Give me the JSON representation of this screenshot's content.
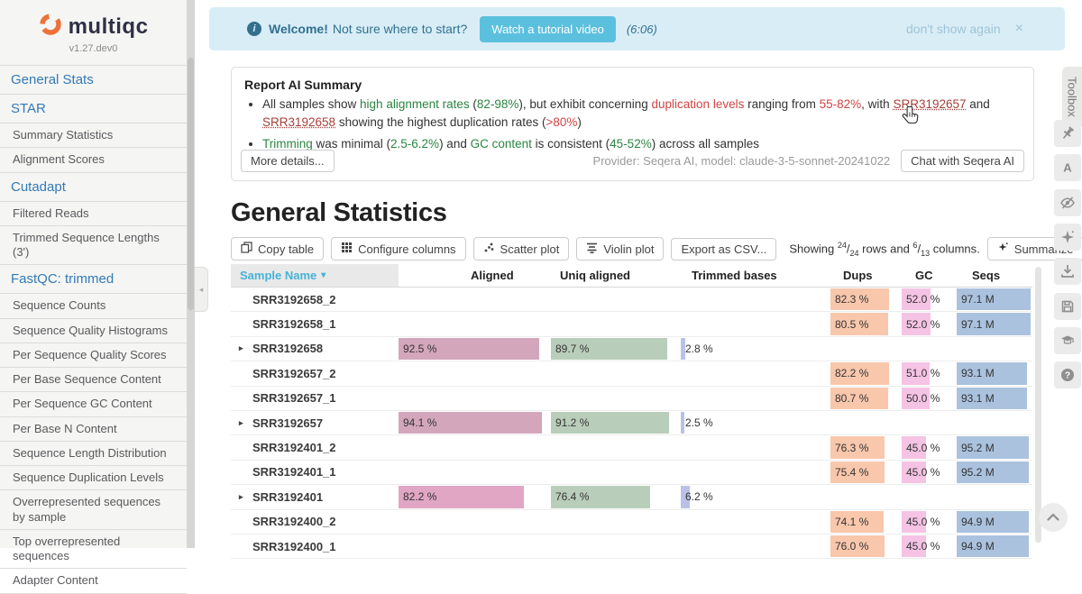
{
  "theme": {
    "sidebar_bg": "#f5f5f3",
    "nav_blue": "#337ab7",
    "banner_bg": "#d9edf7",
    "banner_text": "#31708f",
    "banner_btn": "#5bc0de",
    "good": "#2a8540",
    "bad": "#d04444",
    "link_red": "#a5403a",
    "sort_blue": "#46b2d8",
    "logo_orange": "#ee7139"
  },
  "brand": {
    "name": "multiqc",
    "version": "v1.27.dev0"
  },
  "sidebar": {
    "items": [
      {
        "label": "General Stats",
        "type": "section"
      },
      {
        "label": "STAR",
        "type": "section"
      },
      {
        "label": "Summary Statistics",
        "type": "sub"
      },
      {
        "label": "Alignment Scores",
        "type": "sub"
      },
      {
        "label": "Cutadapt",
        "type": "section"
      },
      {
        "label": "Filtered Reads",
        "type": "sub"
      },
      {
        "label": "Trimmed Sequence Lengths (3')",
        "type": "sub"
      },
      {
        "label": "FastQC: trimmed",
        "type": "section"
      },
      {
        "label": "Sequence Counts",
        "type": "sub"
      },
      {
        "label": "Sequence Quality Histograms",
        "type": "sub"
      },
      {
        "label": "Per Sequence Quality Scores",
        "type": "sub"
      },
      {
        "label": "Per Base Sequence Content",
        "type": "sub"
      },
      {
        "label": "Per Sequence GC Content",
        "type": "sub"
      },
      {
        "label": "Per Base N Content",
        "type": "sub"
      },
      {
        "label": "Sequence Length Distribution",
        "type": "sub"
      },
      {
        "label": "Sequence Duplication Levels",
        "type": "sub"
      },
      {
        "label": "Overrepresented sequences by sample",
        "type": "sub"
      },
      {
        "label": "Top overrepresented sequences",
        "type": "sub"
      },
      {
        "label": "Adapter Content",
        "type": "sub"
      }
    ]
  },
  "welcome": {
    "bold": "Welcome!",
    "text": "Not sure where to start?",
    "button": "Watch a tutorial video",
    "duration": "(6:06)",
    "dismiss": "don't show again",
    "close": "×"
  },
  "ai_summary": {
    "title": "Report AI Summary",
    "bullets": [
      [
        {
          "t": "All samples show "
        },
        {
          "t": "high alignment rates",
          "c": "good"
        },
        {
          "t": " ("
        },
        {
          "t": "82-98%",
          "c": "good"
        },
        {
          "t": "), but exhibit concerning "
        },
        {
          "t": "duplication levels",
          "c": "bad"
        },
        {
          "t": " ranging from "
        },
        {
          "t": "55-82%",
          "c": "bad"
        },
        {
          "t": ", with "
        },
        {
          "t": "SRR3192657",
          "c": "link"
        },
        {
          "t": " and "
        },
        {
          "t": "SRR3192658",
          "c": "link"
        },
        {
          "t": " showing the highest duplication rates ("
        },
        {
          "t": ">80%",
          "c": "bad"
        },
        {
          "t": ")"
        }
      ],
      [
        {
          "t": "Trimming",
          "c": "good"
        },
        {
          "t": " was minimal ("
        },
        {
          "t": "2.5-6.2%",
          "c": "good"
        },
        {
          "t": ") and "
        },
        {
          "t": "GC content",
          "c": "good"
        },
        {
          "t": " is consistent ("
        },
        {
          "t": "45-52%",
          "c": "good"
        },
        {
          "t": ") across all samples"
        }
      ]
    ],
    "more_details": "More details...",
    "provider": "Provider: Seqera AI, model: claude-3-5-sonnet-20241022",
    "chat": "Chat with Seqera AI"
  },
  "general_stats": {
    "title": "General Statistics",
    "toolbar": {
      "copy": "Copy table",
      "configure": "Configure columns",
      "scatter": "Scatter plot",
      "violin": "Violin plot",
      "export": "Export as CSV...",
      "summarize": "Summarize",
      "showing": {
        "prefix": "Showing ",
        "rows_num": "24",
        "rows_den": "24",
        "mid": " rows and ",
        "cols_num": "6",
        "cols_den": "13",
        "suffix": " columns."
      }
    },
    "table": {
      "columns": [
        "Sample Name",
        "Aligned",
        "Uniq aligned",
        "Trimmed bases",
        "Dups",
        "GC",
        "Seqs"
      ],
      "colors": {
        "aligned": "#d4a6bc",
        "uniq": "#b9ceba",
        "trimmed": "#bac1e8",
        "dups": "#f8c7ac",
        "gc": "#f5c3e4",
        "seqs": "#aac2de"
      },
      "rows": [
        {
          "name": "SRR3192658_2",
          "parent": false,
          "cells": {
            "dups": {
              "text": "82.3 %",
              "pct": 82.3
            },
            "gc": {
              "text": "52.0 %",
              "pct": 52
            },
            "seqs": {
              "text": "97.1 M",
              "pct": 97.1
            }
          }
        },
        {
          "name": "SRR3192658_1",
          "parent": false,
          "cells": {
            "dups": {
              "text": "80.5 %",
              "pct": 80.5
            },
            "gc": {
              "text": "52.0 %",
              "pct": 52
            },
            "seqs": {
              "text": "97.1 M",
              "pct": 97.1
            }
          }
        },
        {
          "name": "SRR3192658",
          "parent": true,
          "cells": {
            "aligned": {
              "text": "92.5 %",
              "pct": 92.5
            },
            "uniq": {
              "text": "89.7 %",
              "pct": 89.7
            },
            "trimmed": {
              "text": "2.8 %",
              "pct": 2.8
            }
          }
        },
        {
          "name": "SRR3192657_2",
          "parent": false,
          "cells": {
            "dups": {
              "text": "82.2 %",
              "pct": 82.2
            },
            "gc": {
              "text": "51.0 %",
              "pct": 51
            },
            "seqs": {
              "text": "93.1 M",
              "pct": 93.1
            }
          }
        },
        {
          "name": "SRR3192657_1",
          "parent": false,
          "cells": {
            "dups": {
              "text": "80.7 %",
              "pct": 80.7
            },
            "gc": {
              "text": "50.0 %",
              "pct": 50
            },
            "seqs": {
              "text": "93.1 M",
              "pct": 93.1
            }
          }
        },
        {
          "name": "SRR3192657",
          "parent": true,
          "cells": {
            "aligned": {
              "text": "94.1 %",
              "pct": 94.1
            },
            "uniq": {
              "text": "91.2 %",
              "pct": 91.2
            },
            "trimmed": {
              "text": "2.5 %",
              "pct": 2.5
            }
          }
        },
        {
          "name": "SRR3192401_2",
          "parent": false,
          "cells": {
            "dups": {
              "text": "76.3 %",
              "pct": 76.3
            },
            "gc": {
              "text": "45.0 %",
              "pct": 45
            },
            "seqs": {
              "text": "95.2 M",
              "pct": 95.2
            }
          }
        },
        {
          "name": "SRR3192401_1",
          "parent": false,
          "cells": {
            "dups": {
              "text": "75.4 %",
              "pct": 75.4
            },
            "gc": {
              "text": "45.0 %",
              "pct": 45
            },
            "seqs": {
              "text": "95.2 M",
              "pct": 95.2
            }
          }
        },
        {
          "name": "SRR3192401",
          "parent": true,
          "cells": {
            "aligned": {
              "text": "82.2 %",
              "pct": 82.2,
              "color": "#e0a6c4"
            },
            "uniq": {
              "text": "76.4 %",
              "pct": 76.4
            },
            "trimmed": {
              "text": "6.2 %",
              "pct": 6.2
            }
          }
        },
        {
          "name": "SRR3192400_2",
          "parent": false,
          "cells": {
            "dups": {
              "text": "74.1 %",
              "pct": 74.1
            },
            "gc": {
              "text": "45.0 %",
              "pct": 45
            },
            "seqs": {
              "text": "94.9 M",
              "pct": 94.9
            }
          }
        },
        {
          "name": "SRR3192400_1",
          "parent": false,
          "cells": {
            "dups": {
              "text": "76.0 %",
              "pct": 76
            },
            "gc": {
              "text": "45.0 %",
              "pct": 45
            },
            "seqs": {
              "text": "94.9 M",
              "pct": 94.9
            }
          }
        }
      ]
    }
  },
  "toolbox": {
    "label": "Toolbox",
    "icons": [
      {
        "name": "highlight-pin-icon",
        "glyph": "pin"
      },
      {
        "name": "rename-samples-icon",
        "glyph": "letterA"
      },
      {
        "name": "hide-samples-icon",
        "glyph": "eyeSlash"
      },
      {
        "name": "ai-sparkle-icon",
        "glyph": "sparkle"
      },
      {
        "name": "download-icon",
        "glyph": "download"
      },
      {
        "name": "save-settings-icon",
        "glyph": "floppy"
      },
      {
        "name": "tour-icon",
        "glyph": "gradCap"
      },
      {
        "name": "help-icon",
        "glyph": "question"
      }
    ]
  }
}
